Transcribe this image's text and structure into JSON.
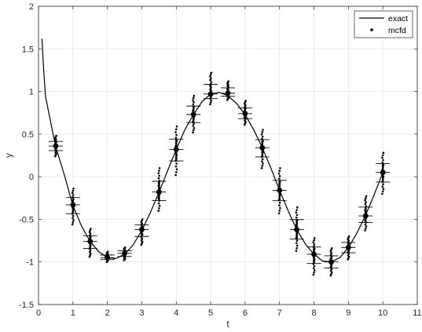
{
  "chart_data": {
    "type": "line",
    "xlabel": "t",
    "ylabel": "y",
    "xlim": [
      0,
      11
    ],
    "ylim": [
      -1.5,
      2
    ],
    "x_ticks": [
      "0",
      "1",
      "2",
      "3",
      "4",
      "5",
      "6",
      "7",
      "8",
      "9",
      "10",
      "11"
    ],
    "y_ticks": [
      "-1.5",
      "-1",
      "-0.5",
      "0",
      "0.5",
      "1",
      "1.5",
      "2"
    ],
    "grid": true,
    "legend_position": "top-right",
    "series": [
      {
        "name": "exact",
        "style": "line",
        "color": "#000000",
        "x": [
          0.1,
          0.15,
          0.2,
          0.3,
          0.4,
          0.5,
          0.6,
          0.75,
          1.0,
          1.25,
          1.5,
          1.75,
          2.0,
          2.25,
          2.5,
          2.75,
          3.0,
          3.25,
          3.5,
          3.75,
          4.0,
          4.25,
          4.5,
          4.75,
          5.0,
          5.25,
          5.5,
          5.75,
          6.0,
          6.25,
          6.5,
          6.75,
          7.0,
          7.25,
          7.5,
          7.75,
          8.0,
          8.25,
          8.5,
          8.75,
          9.0,
          9.25,
          9.5,
          9.75,
          10.0
        ],
        "y": [
          1.62,
          1.25,
          0.95,
          0.75,
          0.55,
          0.35,
          0.22,
          0.02,
          -0.34,
          -0.58,
          -0.76,
          -0.88,
          -0.95,
          -0.96,
          -0.91,
          -0.8,
          -0.63,
          -0.42,
          -0.18,
          0.07,
          0.32,
          0.55,
          0.73,
          0.88,
          0.97,
          0.99,
          0.95,
          0.86,
          0.73,
          0.55,
          0.34,
          0.1,
          -0.16,
          -0.4,
          -0.62,
          -0.79,
          -0.91,
          -0.99,
          -1.0,
          -0.95,
          -0.83,
          -0.66,
          -0.45,
          -0.21,
          0.05
        ]
      },
      {
        "name": "mcfd",
        "style": "points",
        "color": "#000000",
        "x": [
          0.5,
          1.0,
          1.5,
          2.0,
          2.5,
          3.0,
          3.5,
          4.0,
          4.5,
          5.0,
          5.5,
          6.0,
          6.5,
          7.0,
          7.5,
          8.0,
          8.5,
          9.0,
          9.5,
          10.0
        ],
        "y": [
          0.36,
          -0.33,
          -0.76,
          -0.95,
          -0.9,
          -0.62,
          -0.18,
          0.32,
          0.73,
          0.97,
          0.98,
          0.74,
          0.34,
          -0.16,
          -0.62,
          -0.91,
          -1.0,
          -0.83,
          -0.46,
          0.05
        ],
        "spread_min": [
          0.24,
          -0.56,
          -0.94,
          -1.0,
          -0.98,
          -0.8,
          -0.4,
          0.02,
          0.52,
          0.85,
          0.9,
          0.61,
          0.1,
          -0.43,
          -0.87,
          -1.15,
          -1.16,
          -0.97,
          -0.63,
          -0.2
        ],
        "spread_max": [
          0.48,
          -0.14,
          -0.61,
          -0.88,
          -0.83,
          -0.5,
          0.1,
          0.59,
          0.95,
          1.22,
          1.12,
          0.89,
          0.55,
          0.1,
          -0.36,
          -0.72,
          -0.84,
          -0.7,
          -0.23,
          0.28
        ]
      }
    ]
  }
}
